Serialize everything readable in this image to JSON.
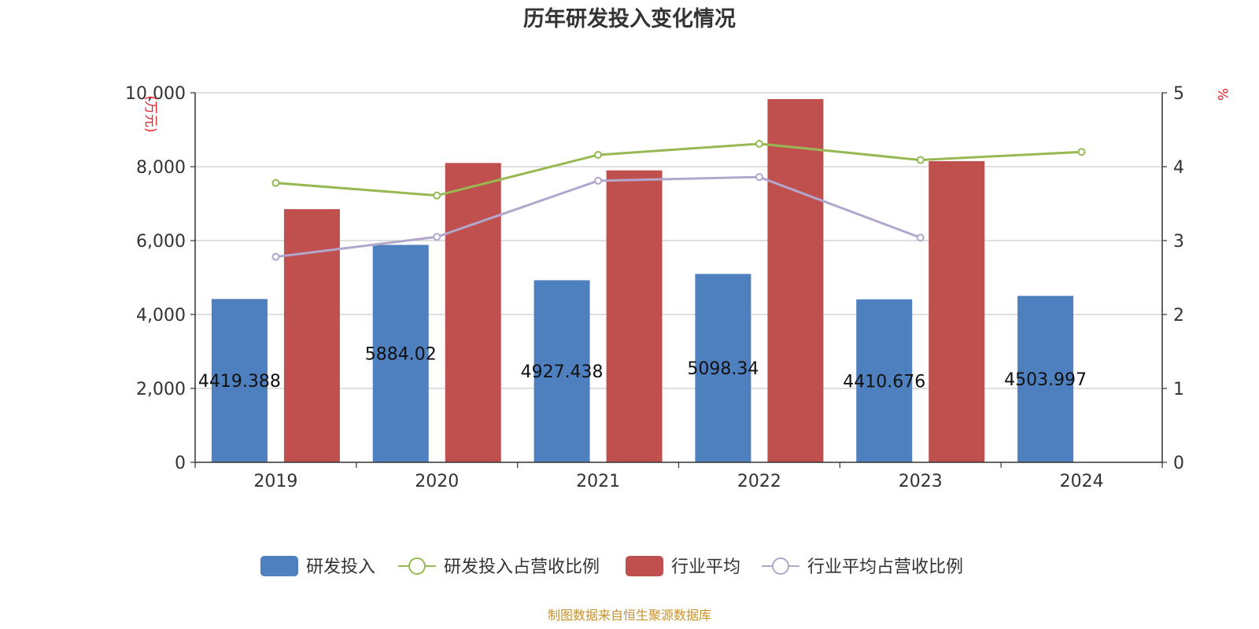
{
  "chart_data": {
    "type": "bar",
    "title": "历年研发投入变化情况",
    "categories": [
      "2019",
      "2020",
      "2021",
      "2022",
      "2023",
      "2024"
    ],
    "y_left": {
      "unit": "(万元)",
      "range": [
        0,
        10000
      ],
      "ticks": [
        "0",
        "2,000",
        "4,000",
        "6,000",
        "8,000",
        "10,000"
      ]
    },
    "y_right": {
      "unit": "%",
      "range": [
        0,
        5
      ],
      "ticks": [
        "0",
        "1",
        "2",
        "3",
        "4",
        "5"
      ]
    },
    "grid": true,
    "legend_position": "bottom-center",
    "series": [
      {
        "name": "研发投入",
        "kind": "bar",
        "axis": "left",
        "color": "#4e7fbe",
        "values": [
          4419.388,
          5884.02,
          4927.438,
          5098.34,
          4410.676,
          4503.997
        ],
        "data_labels": [
          "4419.388",
          "5884.02",
          "4927.438",
          "5098.34",
          "4410.676",
          "4503.997"
        ]
      },
      {
        "name": "研发投入占营收比例",
        "kind": "line",
        "axis": "right",
        "color": "#96b954",
        "values": [
          3.78,
          3.61,
          4.16,
          4.31,
          4.09,
          4.2
        ]
      },
      {
        "name": "行业平均",
        "kind": "bar",
        "axis": "left",
        "color": "#c0504d",
        "values": [
          6850,
          8100,
          7900,
          9830,
          8150,
          null
        ]
      },
      {
        "name": "行业平均占营收比例",
        "kind": "line",
        "axis": "right",
        "color": "#b3a6cd",
        "values": [
          2.78,
          3.05,
          3.81,
          3.86,
          3.04,
          null
        ]
      }
    ]
  },
  "source_note": "制图数据来自恒生聚源数据库"
}
